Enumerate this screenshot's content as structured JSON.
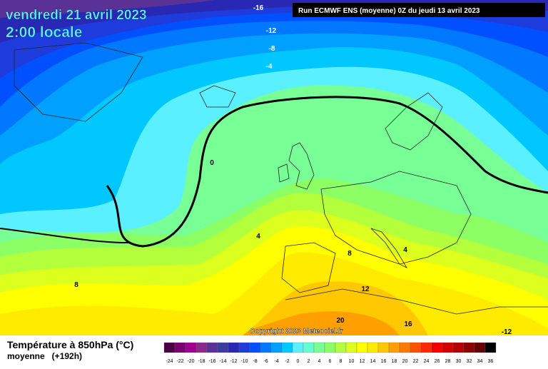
{
  "header": {
    "date": "vendredi 21 avril 2023",
    "time": "2:00 locale",
    "run": "Run ECMWF ENS (moyenne) 0Z du jeudi 13 avril 2023"
  },
  "copyright": "Copyright 2023 Meteociel.fr",
  "legend": {
    "title": "Température à 850hPa (°C)",
    "subtitle": "moyenne   (+192h)",
    "scale": [
      {
        "value": -24,
        "color": "#4b0045"
      },
      {
        "value": -22,
        "color": "#780070"
      },
      {
        "value": -20,
        "color": "#a0008c"
      },
      {
        "value": -18,
        "color": "#8c2a8c"
      },
      {
        "value": -16,
        "color": "#5a3296"
      },
      {
        "value": -14,
        "color": "#3c3ca0"
      },
      {
        "value": -12,
        "color": "#2828b4"
      },
      {
        "value": -10,
        "color": "#1e3cdc"
      },
      {
        "value": -8,
        "color": "#0050ff"
      },
      {
        "value": -6,
        "color": "#0078ff"
      },
      {
        "value": -4,
        "color": "#00a0ff"
      },
      {
        "value": -2,
        "color": "#00c8ff"
      },
      {
        "value": 0,
        "color": "#5af0ff"
      },
      {
        "value": 2,
        "color": "#64ffd2"
      },
      {
        "value": 4,
        "color": "#78ff96"
      },
      {
        "value": 6,
        "color": "#8cff64"
      },
      {
        "value": 8,
        "color": "#b4ff3c"
      },
      {
        "value": 10,
        "color": "#dcff1e"
      },
      {
        "value": 12,
        "color": "#ffff00"
      },
      {
        "value": 14,
        "color": "#ffeb00"
      },
      {
        "value": 16,
        "color": "#ffc800"
      },
      {
        "value": 18,
        "color": "#ffa000"
      },
      {
        "value": 20,
        "color": "#ff7800"
      },
      {
        "value": 22,
        "color": "#ff5000"
      },
      {
        "value": 24,
        "color": "#ff2800"
      },
      {
        "value": 26,
        "color": "#f00000"
      },
      {
        "value": 28,
        "color": "#d20000"
      },
      {
        "value": 30,
        "color": "#b40000"
      },
      {
        "value": 32,
        "color": "#8c0000"
      },
      {
        "value": 34,
        "color": "#640000"
      },
      {
        "value": 36,
        "color": "#000000"
      }
    ]
  },
  "contour_labels": [
    -16,
    -12,
    -8,
    -4,
    0,
    4,
    8,
    4,
    8,
    12,
    20,
    16,
    -12
  ]
}
